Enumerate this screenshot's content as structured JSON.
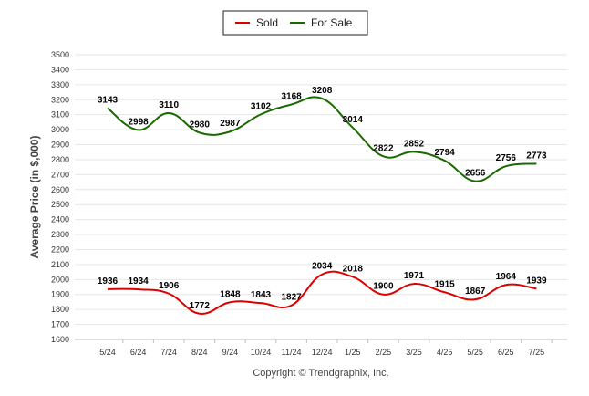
{
  "chart_data": {
    "type": "line",
    "categories": [
      "5/24",
      "6/24",
      "7/24",
      "8/24",
      "9/24",
      "10/24",
      "11/24",
      "12/24",
      "1/25",
      "2/25",
      "3/25",
      "4/25",
      "5/25",
      "6/25",
      "7/25"
    ],
    "series": [
      {
        "name": "Sold",
        "color": "#dd0000",
        "values": [
          1936,
          1934,
          1906,
          1772,
          1848,
          1843,
          1827,
          2034,
          2018,
          1900,
          1971,
          1915,
          1867,
          1964,
          1939
        ]
      },
      {
        "name": "For Sale",
        "color": "#1a6a00",
        "values": [
          3143,
          2998,
          3110,
          2980,
          2987,
          3102,
          3168,
          3208,
          3014,
          2822,
          2852,
          2794,
          2656,
          2756,
          2773
        ]
      }
    ],
    "ylabel": "Average Price (in $,000)",
    "xlabel": "",
    "ylim": [
      1600,
      3500
    ],
    "yticks": [
      1600,
      1700,
      1800,
      1900,
      2000,
      2100,
      2200,
      2300,
      2400,
      2500,
      2600,
      2700,
      2800,
      2900,
      3000,
      3100,
      3200,
      3300,
      3400,
      3500
    ],
    "grid": true,
    "legend_position": "top-center",
    "credit": "Copyright © Trendgraphix, Inc."
  }
}
